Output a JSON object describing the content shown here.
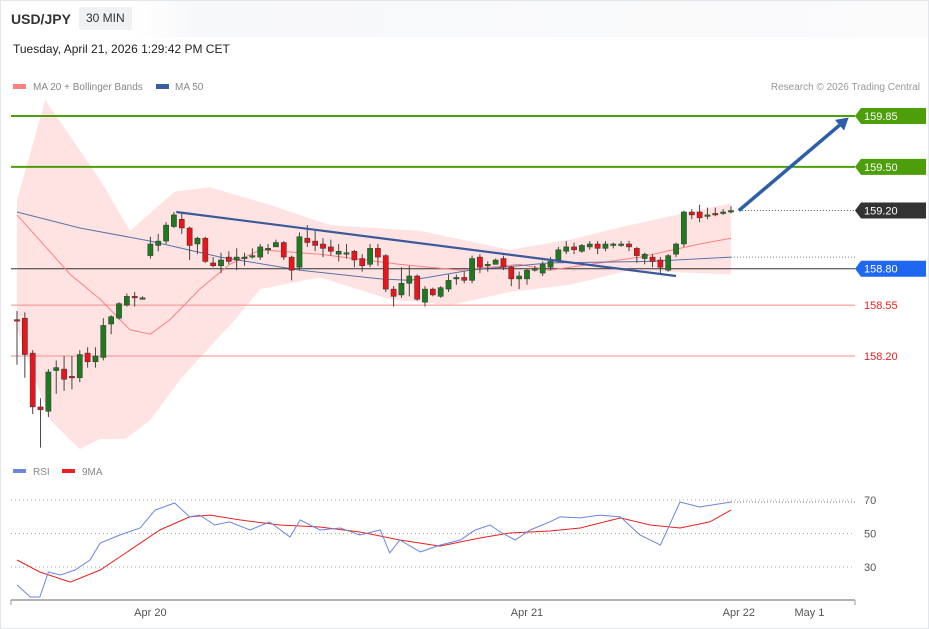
{
  "header": {
    "symbol": "USD/JPY",
    "timeframe": "30 MIN",
    "timestamp": "Tuesday, April 21, 2026 1:29:42 PM CET"
  },
  "legend": {
    "ma20_bb": "MA 20 + Bollinger Bands",
    "ma50": "MA 50",
    "copyright": "Research © 2026 Trading Central",
    "rsi": "RSI",
    "rsi_ma": "9MA"
  },
  "colors": {
    "bull": "#1f7a1f",
    "bear": "#e8151b",
    "band": "#ffe0e0",
    "ma20": "#ff8080",
    "ma50": "#3a5fa0",
    "trend": "#3a5a9c",
    "arrow": "#2d5ea8",
    "green_level": "#4c9e0a",
    "blue_level": "#1f66f0",
    "red_level": "#ff8a8a",
    "rsi": "#6a86e0",
    "rsi_ma": "#e82020"
  },
  "chart_data": [
    {
      "type": "candlestick",
      "title": "USD/JPY 30 MIN",
      "ylim": [
        157.45,
        160.0
      ],
      "x_tick_labels": [
        {
          "label": "Apr 20",
          "index": 17
        },
        {
          "label": "Apr 21",
          "index": 65
        },
        {
          "label": "Apr 22",
          "index": 92
        },
        {
          "label": "May 1",
          "index": 101
        }
      ],
      "candles_ohlc": [
        [
          158.45,
          158.51,
          158.14,
          158.44
        ],
        [
          158.46,
          158.5,
          158.05,
          158.21
        ],
        [
          158.22,
          158.24,
          157.8,
          157.85
        ],
        [
          157.85,
          157.91,
          157.57,
          157.83
        ],
        [
          157.82,
          158.11,
          157.78,
          158.09
        ],
        [
          158.1,
          158.17,
          157.94,
          158.12
        ],
        [
          158.11,
          158.2,
          157.96,
          158.04
        ],
        [
          158.06,
          158.2,
          157.97,
          158.05
        ],
        [
          158.05,
          158.24,
          158.02,
          158.21
        ],
        [
          158.22,
          158.26,
          158.12,
          158.16
        ],
        [
          158.16,
          158.26,
          158.12,
          158.2
        ],
        [
          158.19,
          158.46,
          158.17,
          158.41
        ],
        [
          158.42,
          158.48,
          158.35,
          158.47
        ],
        [
          158.46,
          158.57,
          158.45,
          158.56
        ],
        [
          158.55,
          158.63,
          158.54,
          158.61
        ],
        [
          158.61,
          158.64,
          158.54,
          158.6
        ],
        [
          158.6,
          158.61,
          158.59,
          158.6
        ],
        [
          158.89,
          159.02,
          158.87,
          158.97
        ],
        [
          158.96,
          159.04,
          158.92,
          158.99
        ],
        [
          158.99,
          159.12,
          158.97,
          159.1
        ],
        [
          159.09,
          159.19,
          159.08,
          159.17
        ],
        [
          159.14,
          159.19,
          159.04,
          159.08
        ],
        [
          159.08,
          159.09,
          158.86,
          158.96
        ],
        [
          158.97,
          159.02,
          158.9,
          159.01
        ],
        [
          159.01,
          159.02,
          158.84,
          158.85
        ],
        [
          158.84,
          158.88,
          158.81,
          158.82
        ],
        [
          158.82,
          158.91,
          158.77,
          158.86
        ],
        [
          158.88,
          158.92,
          158.83,
          158.85
        ],
        [
          158.86,
          158.94,
          158.79,
          158.88
        ],
        [
          158.87,
          158.91,
          158.82,
          158.88
        ],
        [
          158.89,
          158.94,
          158.87,
          158.89
        ],
        [
          158.88,
          158.97,
          158.86,
          158.95
        ],
        [
          158.94,
          158.97,
          158.9,
          158.94
        ],
        [
          158.95,
          159.0,
          158.95,
          158.98
        ],
        [
          158.98,
          158.99,
          158.86,
          158.88
        ],
        [
          158.88,
          158.89,
          158.72,
          158.79
        ],
        [
          158.81,
          159.05,
          158.79,
          159.02
        ],
        [
          159.01,
          159.1,
          158.95,
          158.98
        ],
        [
          158.99,
          159.06,
          158.92,
          158.96
        ],
        [
          158.97,
          159.01,
          158.88,
          158.94
        ],
        [
          158.95,
          159.0,
          158.89,
          158.92
        ],
        [
          158.9,
          158.97,
          158.85,
          158.92
        ],
        [
          158.9,
          158.97,
          158.87,
          158.91
        ],
        [
          158.92,
          158.93,
          158.81,
          158.86
        ],
        [
          158.87,
          158.9,
          158.78,
          158.82
        ],
        [
          158.83,
          158.97,
          158.81,
          158.94
        ],
        [
          158.94,
          158.97,
          158.82,
          158.88
        ],
        [
          158.89,
          158.9,
          158.64,
          158.66
        ],
        [
          158.66,
          158.68,
          158.54,
          158.61
        ],
        [
          158.62,
          158.81,
          158.6,
          158.7
        ],
        [
          158.7,
          158.82,
          158.61,
          158.75
        ],
        [
          158.75,
          158.76,
          158.58,
          158.59
        ],
        [
          158.57,
          158.68,
          158.54,
          158.66
        ],
        [
          158.66,
          158.67,
          158.61,
          158.62
        ],
        [
          158.61,
          158.68,
          158.6,
          158.67
        ],
        [
          158.66,
          158.76,
          158.64,
          158.72
        ],
        [
          158.73,
          158.76,
          158.69,
          158.74
        ],
        [
          158.74,
          158.78,
          158.7,
          158.72
        ],
        [
          158.72,
          158.89,
          158.7,
          158.87
        ],
        [
          158.88,
          158.9,
          158.77,
          158.81
        ],
        [
          158.82,
          158.85,
          158.78,
          158.83
        ],
        [
          158.83,
          158.87,
          158.83,
          158.86
        ],
        [
          158.87,
          158.89,
          158.79,
          158.81
        ],
        [
          158.81,
          158.82,
          158.68,
          158.73
        ],
        [
          158.73,
          158.78,
          158.66,
          158.75
        ],
        [
          158.73,
          158.8,
          158.69,
          158.79
        ],
        [
          158.79,
          158.82,
          158.78,
          158.8
        ],
        [
          158.77,
          158.85,
          158.75,
          158.83
        ],
        [
          158.81,
          158.88,
          158.79,
          158.85
        ],
        [
          158.86,
          158.95,
          158.84,
          158.93
        ],
        [
          158.92,
          158.99,
          158.9,
          158.95
        ],
        [
          158.95,
          158.98,
          158.9,
          158.93
        ],
        [
          158.92,
          158.97,
          158.91,
          158.96
        ],
        [
          158.95,
          158.99,
          158.93,
          158.97
        ],
        [
          158.97,
          158.99,
          158.9,
          158.94
        ],
        [
          158.94,
          158.99,
          158.92,
          158.97
        ],
        [
          158.96,
          158.98,
          158.94,
          158.97
        ],
        [
          158.97,
          158.99,
          158.95,
          158.97
        ],
        [
          158.97,
          158.99,
          158.92,
          158.95
        ],
        [
          158.94,
          158.95,
          158.84,
          158.89
        ],
        [
          158.87,
          158.91,
          158.83,
          158.9
        ],
        [
          158.88,
          158.9,
          158.81,
          158.85
        ],
        [
          158.86,
          158.88,
          158.77,
          158.81
        ],
        [
          158.79,
          158.9,
          158.78,
          158.89
        ],
        [
          158.9,
          158.98,
          158.88,
          158.97
        ],
        [
          158.97,
          159.2,
          158.95,
          159.19
        ],
        [
          159.19,
          159.21,
          159.14,
          159.17
        ],
        [
          159.19,
          159.24,
          159.12,
          159.15
        ],
        [
          159.17,
          159.22,
          159.14,
          159.17
        ],
        [
          159.18,
          159.22,
          159.16,
          159.17
        ],
        [
          159.19,
          159.21,
          159.17,
          159.19
        ],
        [
          159.19,
          159.23,
          159.18,
          159.2
        ]
      ],
      "bollinger_upper": [
        [
          0,
          159.27
        ],
        [
          3.6,
          159.96
        ],
        [
          10.6,
          159.41
        ],
        [
          14.4,
          159.06
        ],
        [
          20.1,
          159.33
        ],
        [
          24.6,
          159.36
        ],
        [
          32.2,
          159.24
        ],
        [
          39.9,
          159.1
        ],
        [
          51.4,
          159.06
        ],
        [
          62.8,
          158.93
        ],
        [
          70.5,
          159.0
        ],
        [
          78.1,
          159.1
        ],
        [
          85.8,
          159.19
        ],
        [
          91,
          159.25
        ]
      ],
      "bollinger_lower": [
        [
          0,
          158.38
        ],
        [
          4.2,
          157.76
        ],
        [
          8,
          157.56
        ],
        [
          10.6,
          157.63
        ],
        [
          13.8,
          157.63
        ],
        [
          17,
          157.76
        ],
        [
          20.8,
          158.04
        ],
        [
          27.8,
          158.45
        ],
        [
          31,
          158.66
        ],
        [
          38.6,
          158.74
        ],
        [
          47.5,
          158.59
        ],
        [
          55.2,
          158.55
        ],
        [
          62.8,
          158.64
        ],
        [
          70.5,
          158.69
        ],
        [
          78.1,
          158.79
        ],
        [
          91,
          158.76
        ]
      ],
      "ma20": [
        [
          0,
          159.17
        ],
        [
          6.8,
          158.76
        ],
        [
          10.6,
          158.59
        ],
        [
          14.4,
          158.38
        ],
        [
          17,
          158.35
        ],
        [
          19.5,
          158.45
        ],
        [
          23.3,
          158.66
        ],
        [
          27.1,
          158.83
        ],
        [
          31,
          158.93
        ],
        [
          38.6,
          158.9
        ],
        [
          48.8,
          158.83
        ],
        [
          56.5,
          158.79
        ],
        [
          64.1,
          158.83
        ],
        [
          67.9,
          158.79
        ],
        [
          79.4,
          158.88
        ],
        [
          87,
          158.97
        ],
        [
          91,
          159.01
        ]
      ],
      "ma50": [
        [
          0,
          159.19
        ],
        [
          8,
          159.08
        ],
        [
          17,
          158.99
        ],
        [
          25.9,
          158.88
        ],
        [
          36.1,
          158.79
        ],
        [
          46.3,
          158.73
        ],
        [
          50.1,
          158.72
        ],
        [
          57.7,
          158.79
        ],
        [
          67.9,
          158.84
        ],
        [
          80.7,
          158.85
        ],
        [
          91,
          158.88
        ]
      ],
      "trendline": [
        [
          20.3,
          159.19
        ],
        [
          84,
          158.75
        ]
      ],
      "projection_arrow": [
        [
          92,
          159.2
        ],
        [
          106,
          159.84
        ]
      ],
      "levels": [
        {
          "label": "159.85",
          "value": 159.85,
          "kind": "resistance"
        },
        {
          "label": "159.50",
          "value": 159.5,
          "kind": "resistance"
        },
        {
          "label": "159.20",
          "value": 159.2,
          "kind": "last"
        },
        {
          "label": "158.80",
          "value": 158.8,
          "kind": "pivot"
        },
        {
          "label": "158.55",
          "value": 158.55,
          "kind": "support"
        },
        {
          "label": "158.20",
          "value": 158.2,
          "kind": "support"
        }
      ]
    },
    {
      "type": "line",
      "title": "RSI",
      "ylim": [
        0,
        100
      ],
      "y_tick_labels": [
        "70",
        "50",
        "30"
      ],
      "series": [
        {
          "name": "RSI",
          "points": [
            [
              0,
              19.3
            ],
            [
              1.7,
              12.1
            ],
            [
              2.9,
              12.1
            ],
            [
              4,
              27.0
            ],
            [
              5.5,
              25.2
            ],
            [
              7.4,
              28.2
            ],
            [
              9.3,
              34.2
            ],
            [
              10.6,
              44.3
            ],
            [
              13.1,
              49.1
            ],
            [
              15.7,
              53.3
            ],
            [
              17.6,
              64.0
            ],
            [
              20.1,
              68.2
            ],
            [
              22,
              59.9
            ],
            [
              23.3,
              61.0
            ],
            [
              25.2,
              55.1
            ],
            [
              27.1,
              56.9
            ],
            [
              29.7,
              52.1
            ],
            [
              32.2,
              56.9
            ],
            [
              34.8,
              47.9
            ],
            [
              36.1,
              58.1
            ],
            [
              38.6,
              52.1
            ],
            [
              41.2,
              53.3
            ],
            [
              43.7,
              49.1
            ],
            [
              46.3,
              52.1
            ],
            [
              47.5,
              38.4
            ],
            [
              48.8,
              46.1
            ],
            [
              51.4,
              39.0
            ],
            [
              53.9,
              43.1
            ],
            [
              56.5,
              46.1
            ],
            [
              58.4,
              52.1
            ],
            [
              60.3,
              55.1
            ],
            [
              61.6,
              50.9
            ],
            [
              63.5,
              46.1
            ],
            [
              65.4,
              52.1
            ],
            [
              67.9,
              56.9
            ],
            [
              69.2,
              59.9
            ],
            [
              71.8,
              59.3
            ],
            [
              74.3,
              61.0
            ],
            [
              76.9,
              59.9
            ],
            [
              79.4,
              49.1
            ],
            [
              82,
              43.1
            ],
            [
              84.5,
              68.8
            ],
            [
              87,
              65.8
            ],
            [
              91,
              68.8
            ]
          ]
        },
        {
          "name": "9MA",
          "points": [
            [
              0,
              34.2
            ],
            [
              2.9,
              27.0
            ],
            [
              6.8,
              21.0
            ],
            [
              10.6,
              28.2
            ],
            [
              14.4,
              40.1
            ],
            [
              18.2,
              52.1
            ],
            [
              22,
              59.9
            ],
            [
              24.6,
              61.0
            ],
            [
              28.4,
              58.1
            ],
            [
              33.5,
              55.1
            ],
            [
              38.6,
              53.9
            ],
            [
              43.7,
              50.9
            ],
            [
              48.8,
              46.1
            ],
            [
              53.9,
              42.5
            ],
            [
              59,
              47.3
            ],
            [
              62.8,
              50.3
            ],
            [
              67.9,
              51.5
            ],
            [
              71.8,
              53.3
            ],
            [
              76.9,
              59.3
            ],
            [
              80.7,
              55.1
            ],
            [
              84.5,
              53.3
            ],
            [
              88.3,
              56.9
            ],
            [
              91,
              64.0
            ]
          ]
        }
      ]
    }
  ]
}
